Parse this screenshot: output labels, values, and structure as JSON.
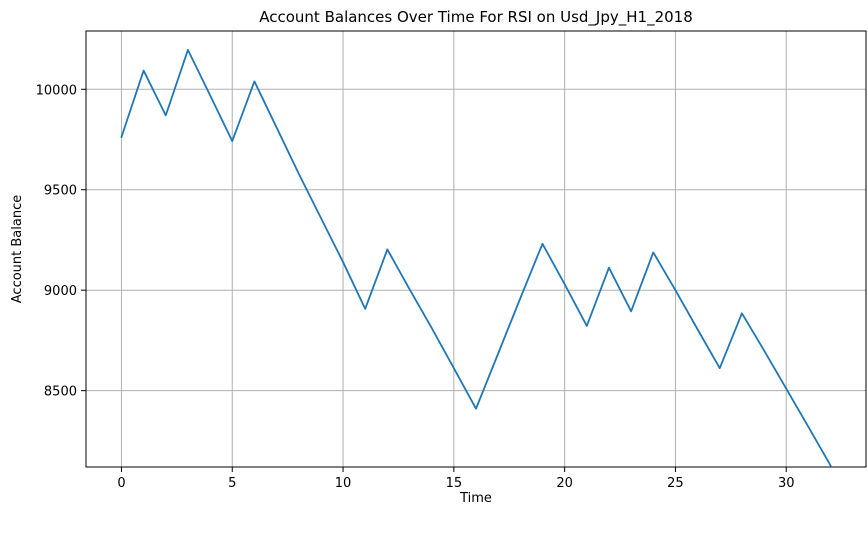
{
  "chart_data": {
    "type": "line",
    "title": "Account Balances Over Time For RSI on Usd_Jpy_H1_2018",
    "xlabel": "Time",
    "ylabel": "Account Balance",
    "xlim": [
      -1.6,
      33.6
    ],
    "ylim": [
      8120,
      10290
    ],
    "x_ticks": [
      0,
      5,
      10,
      15,
      20,
      25,
      30
    ],
    "y_ticks": [
      8500,
      9000,
      9500,
      10000
    ],
    "grid": true,
    "legend": "none",
    "series": [
      {
        "color": "#1f77b4",
        "x": [
          0,
          1,
          2,
          3,
          4,
          5,
          6,
          7,
          8,
          9,
          10,
          11,
          12,
          13,
          14,
          15,
          16,
          17,
          18,
          19,
          20,
          21,
          22,
          23,
          24,
          25,
          26,
          27,
          28,
          29,
          30,
          31,
          32
        ],
        "values": [
          9762,
          10093,
          9870,
          10196,
          9970,
          9742,
          10039,
          9810,
          9580,
          9360,
          9140,
          8907,
          9203,
          9005,
          8812,
          8612,
          8410,
          8685,
          8960,
          9231,
          9030,
          8822,
          9112,
          8895,
          9188,
          9000,
          8805,
          8612,
          8885,
          8700,
          8510,
          8320,
          8127
        ]
      }
    ]
  }
}
